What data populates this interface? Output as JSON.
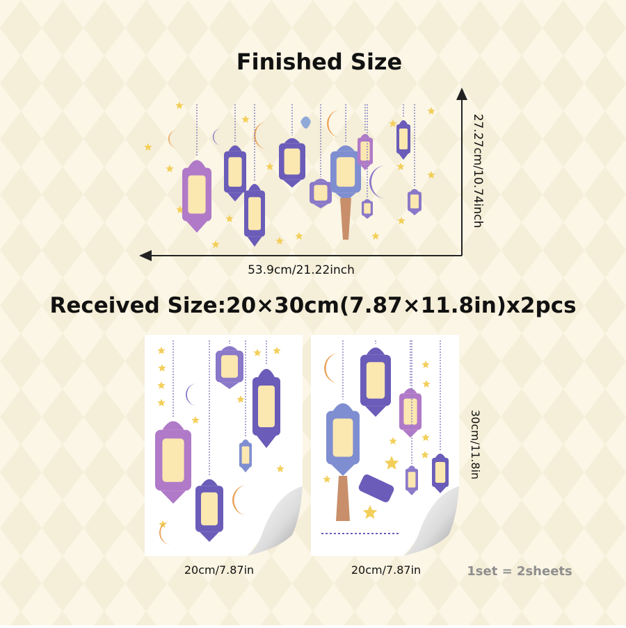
{
  "finished": {
    "title": "Finished Size",
    "height": "27.27cm/10.74inch",
    "width": "53.9cm/21.22inch"
  },
  "received": {
    "title": "Received Size:20×30cm(7.87×11.8in)x2pcs",
    "sheet_height": "30cm/11.8in",
    "sheets": [
      {
        "width": "20cm/7.87in"
      },
      {
        "width": "20cm/7.87in"
      }
    ],
    "note": "1set = 2sheets"
  }
}
